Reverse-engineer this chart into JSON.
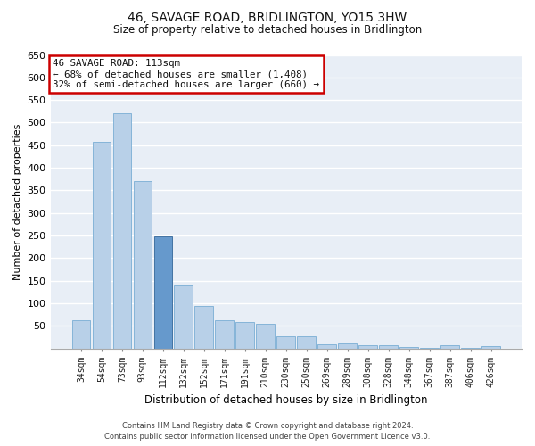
{
  "title": "46, SAVAGE ROAD, BRIDLINGTON, YO15 3HW",
  "subtitle": "Size of property relative to detached houses in Bridlington",
  "xlabel": "Distribution of detached houses by size in Bridlington",
  "ylabel": "Number of detached properties",
  "footer_line1": "Contains HM Land Registry data © Crown copyright and database right 2024.",
  "footer_line2": "Contains public sector information licensed under the Open Government Licence v3.0.",
  "annotation_title": "46 SAVAGE ROAD: 113sqm",
  "annotation_line1": "← 68% of detached houses are smaller (1,408)",
  "annotation_line2": "32% of semi-detached houses are larger (660) →",
  "highlight_bar_index": 4,
  "categories": [
    "34sqm",
    "54sqm",
    "73sqm",
    "93sqm",
    "112sqm",
    "132sqm",
    "152sqm",
    "171sqm",
    "191sqm",
    "210sqm",
    "230sqm",
    "250sqm",
    "269sqm",
    "289sqm",
    "308sqm",
    "328sqm",
    "348sqm",
    "367sqm",
    "387sqm",
    "406sqm",
    "426sqm"
  ],
  "values": [
    62,
    458,
    520,
    370,
    248,
    140,
    95,
    62,
    58,
    55,
    27,
    27,
    10,
    12,
    7,
    7,
    4,
    2,
    7,
    2,
    5
  ],
  "bar_color": "#b8d0e8",
  "bar_edge_color": "#7aadd4",
  "highlight_color": "#6699cc",
  "highlight_edge_color": "#336699",
  "background_color": "#e8eef6",
  "grid_color": "#ffffff",
  "fig_background": "#ffffff",
  "annotation_box_color": "#ffffff",
  "annotation_box_edge_color": "#cc0000",
  "ylim": [
    0,
    650
  ],
  "yticks": [
    0,
    50,
    100,
    150,
    200,
    250,
    300,
    350,
    400,
    450,
    500,
    550,
    600,
    650
  ]
}
